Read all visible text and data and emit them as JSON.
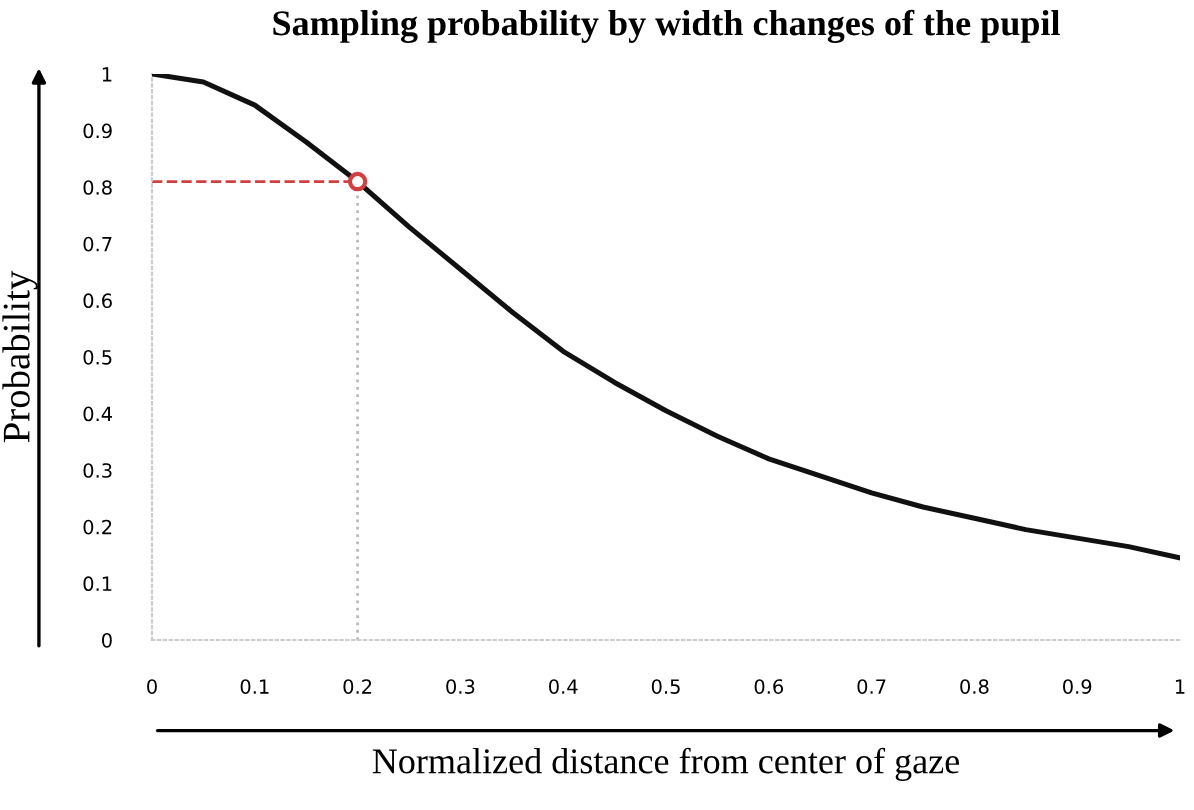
{
  "chart_data": {
    "type": "line",
    "title": "Sampling probability by width changes of the pupil",
    "xlabel": "Normalized distance from center of gaze",
    "ylabel": "Probability",
    "x": [
      0,
      0.05,
      0.1,
      0.15,
      0.2,
      0.25,
      0.3,
      0.35,
      0.4,
      0.45,
      0.5,
      0.55,
      0.6,
      0.65,
      0.7,
      0.75,
      0.8,
      0.85,
      0.9,
      0.95,
      1
    ],
    "series": [
      {
        "color": "#111111",
        "values": [
          1,
          0.986,
          0.945,
          0.88,
          0.81,
          0.73,
          0.655,
          0.58,
          0.51,
          0.455,
          0.405,
          0.36,
          0.32,
          0.29,
          0.26,
          0.235,
          0.215,
          0.195,
          0.18,
          0.165,
          0.145
        ]
      },
      {
        "type": "scatter",
        "color": "#d04040",
        "marker": "circle",
        "x": [
          0.2
        ],
        "values": [
          0.81
        ]
      }
    ],
    "ref_lines": [
      {
        "axis": "x",
        "value": 0.2,
        "color": "#bbbbbb",
        "line_style": "dotted"
      },
      {
        "axis": "y",
        "value": 0.81,
        "color": "#d04040",
        "line_style": "dashed"
      }
    ],
    "xlim": [
      0,
      1
    ],
    "ylim": [
      0,
      1
    ],
    "xticks": [
      0,
      0.1,
      0.2,
      0.3,
      0.4,
      0.5,
      0.6,
      0.7,
      0.8,
      0.9,
      1
    ],
    "yticks": [
      0,
      0.1,
      0.2,
      0.3,
      0.4,
      0.5,
      0.6,
      0.7,
      0.8,
      0.9,
      1
    ],
    "grid": false,
    "legend": false,
    "marker": "none",
    "line_style": "solid"
  }
}
